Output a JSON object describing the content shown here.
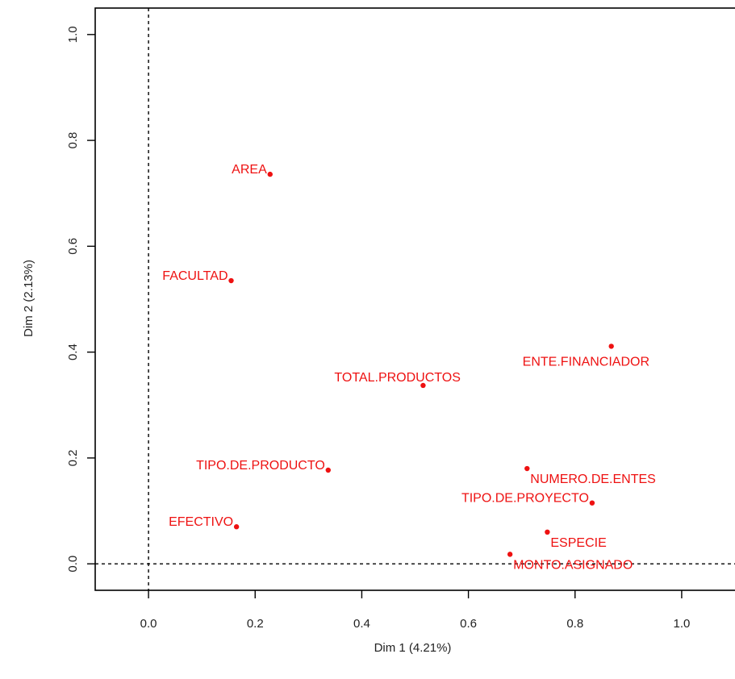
{
  "chart_data": {
    "type": "scatter",
    "title": "",
    "xlabel": "Dim 1 (4.21%)",
    "ylabel": "Dim 2 (2.13%)",
    "xlim": [
      -0.1,
      1.1
    ],
    "ylim": [
      -0.05,
      1.05
    ],
    "x_ticks": [
      0.0,
      0.2,
      0.4,
      0.6,
      0.8,
      1.0
    ],
    "y_ticks": [
      0.0,
      0.2,
      0.4,
      0.6,
      0.8,
      1.0
    ],
    "x_tick_labels": [
      "0.0",
      "0.2",
      "0.4",
      "0.6",
      "0.8",
      "1.0"
    ],
    "y_tick_labels": [
      "0.0",
      "0.2",
      "0.4",
      "0.6",
      "0.8",
      "1.0"
    ],
    "reference_lines": {
      "x": 0,
      "y": 0,
      "style": "dashed"
    },
    "grid": false,
    "point_color": "#ee1111",
    "points": [
      {
        "label": "AREA",
        "x": 0.228,
        "y": 0.736,
        "label_pos": "left"
      },
      {
        "label": "FACULTAD",
        "x": 0.155,
        "y": 0.535,
        "label_pos": "left"
      },
      {
        "label": "ENTE.FINANCIADOR",
        "x": 0.868,
        "y": 0.411,
        "label_pos": "below"
      },
      {
        "label": "TOTAL.PRODUCTOS",
        "x": 0.515,
        "y": 0.337,
        "label_pos": "above"
      },
      {
        "label": "TIPO.DE.PRODUCTO",
        "x": 0.337,
        "y": 0.177,
        "label_pos": "left"
      },
      {
        "label": "NUMERO.DE.ENTES",
        "x": 0.71,
        "y": 0.18,
        "label_pos": "right"
      },
      {
        "label": "TIPO.DE.PROYECTO",
        "x": 0.832,
        "y": 0.115,
        "label_pos": "left"
      },
      {
        "label": "EFECTIVO",
        "x": 0.165,
        "y": 0.07,
        "label_pos": "left"
      },
      {
        "label": "ESPECIE",
        "x": 0.748,
        "y": 0.06,
        "label_pos": "right"
      },
      {
        "label": "MONTO.ASIGNADO",
        "x": 0.678,
        "y": 0.018,
        "label_pos": "right"
      }
    ]
  }
}
